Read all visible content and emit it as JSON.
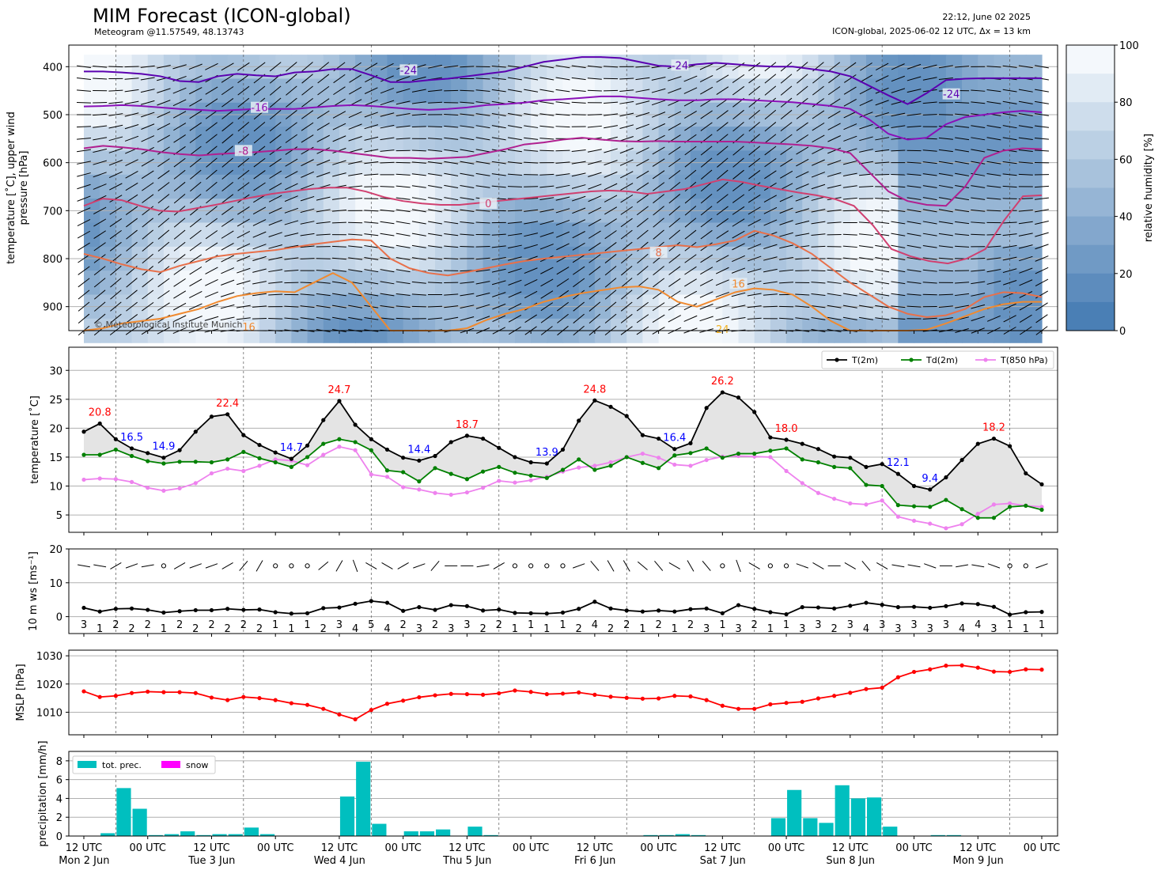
{
  "header": {
    "title": "MIM Forecast (ICON-global)",
    "subtitle": "Meteogram @11.57549, 48.13743",
    "issued": "22:12, June 02 2025",
    "model_info": "ICON-global, 2025-06-02 12 UTC, Δx = 13 km",
    "copyright": "© Meteorological Institute Munich"
  },
  "colors": {
    "t2m": "#000000",
    "td2m": "#008000",
    "t850": "#ee82ee",
    "max_label": "#ff0000",
    "min_label": "#0000ff",
    "mslp": "#ff0000",
    "precip": "#00bfbf",
    "snow": "#ff00ff",
    "rh_dark": "#4a7fb5",
    "rh_light": "#f4f8fc"
  },
  "time_axis": {
    "tick_labels": [
      "12 UTC",
      "00 UTC",
      "12 UTC",
      "00 UTC",
      "12 UTC",
      "00 UTC",
      "12 UTC",
      "00 UTC",
      "12 UTC",
      "00 UTC",
      "12 UTC",
      "00 UTC",
      "12 UTC",
      "00 UTC",
      "12 UTC",
      "00 UTC"
    ],
    "day_labels": [
      "Mon 2 Jun",
      "Tue 3 Jun",
      "Wed 4 Jun",
      "Thu 5 Jun",
      "Fri 6 Jun",
      "Sat 7 Jun",
      "Sun 8 Jun",
      "Mon 9 Jun"
    ],
    "hours_range": [
      0,
      180
    ],
    "step_hours": 3
  },
  "chart_data": [
    {
      "type": "heatmap",
      "name": "upper-air",
      "ylabel": "temperature [˚C], upper wind\npressure [hPa]",
      "yticks": [
        400,
        500,
        600,
        700,
        800,
        900
      ],
      "ylim": [
        950,
        355
      ],
      "colorbar": {
        "label": "relative humidity [%]",
        "ticks": [
          0,
          20,
          40,
          60,
          80,
          100
        ]
      },
      "isotherms": [
        {
          "label": "-24",
          "color": "#5b00b0",
          "level_hpa": [
            410,
            410,
            412,
            415,
            420,
            430,
            432,
            420,
            415,
            418,
            420,
            412,
            410,
            405,
            405,
            418,
            432,
            432,
            428,
            425,
            420,
            415,
            410,
            400,
            390,
            385,
            380,
            380,
            382,
            390,
            398,
            400,
            395,
            392,
            395,
            398,
            400,
            400,
            405,
            410,
            420,
            440,
            460,
            478,
            455,
            428,
            425,
            424,
            424,
            424,
            424
          ],
          "label_at": [
            [
              61,
              410
            ],
            [
              112,
              400
            ],
            [
              163,
              460
            ]
          ]
        },
        {
          "label": "-16",
          "color": "#8a10b8",
          "level_hpa": [
            483,
            482,
            480,
            482,
            485,
            488,
            490,
            492,
            490,
            488,
            488,
            488,
            485,
            482,
            480,
            482,
            485,
            488,
            490,
            488,
            485,
            480,
            478,
            475,
            470,
            468,
            465,
            462,
            462,
            465,
            468,
            470,
            470,
            468,
            468,
            470,
            472,
            474,
            478,
            482,
            488,
            510,
            540,
            552,
            548,
            520,
            505,
            500,
            495,
            492,
            495
          ],
          "label_at": [
            [
              33,
              488
            ]
          ]
        },
        {
          "label": "-8",
          "color": "#b02090",
          "level_hpa": [
            570,
            565,
            568,
            572,
            578,
            582,
            585,
            582,
            580,
            578,
            575,
            572,
            572,
            575,
            580,
            585,
            590,
            590,
            592,
            590,
            588,
            580,
            572,
            562,
            558,
            552,
            548,
            552,
            555,
            556,
            555,
            556,
            556,
            556,
            556,
            558,
            560,
            562,
            565,
            570,
            580,
            620,
            660,
            680,
            688,
            690,
            650,
            590,
            575,
            570,
            572
          ],
          "label_at": [
            [
              30,
              578
            ]
          ]
        },
        {
          "label": "0",
          "color": "#d04070",
          "level_hpa": [
            690,
            675,
            678,
            690,
            700,
            702,
            695,
            688,
            680,
            672,
            665,
            660,
            655,
            652,
            652,
            660,
            672,
            680,
            685,
            688,
            688,
            684,
            680,
            676,
            672,
            668,
            664,
            660,
            658,
            660,
            665,
            660,
            655,
            645,
            635,
            640,
            648,
            655,
            662,
            668,
            676,
            690,
            730,
            780,
            795,
            805,
            810,
            800,
            780,
            720,
            670,
            668
          ],
          "label_at": [
            [
              76,
              688
            ]
          ]
        },
        {
          "label": "8",
          "color": "#e8704a",
          "level_hpa": [
            790,
            800,
            812,
            822,
            828,
            815,
            805,
            795,
            790,
            786,
            782,
            776,
            770,
            765,
            760,
            762,
            800,
            820,
            830,
            835,
            828,
            820,
            812,
            805,
            800,
            796,
            792,
            788,
            784,
            780,
            776,
            772,
            776,
            770,
            762,
            742,
            752,
            768,
            790,
            820,
            850,
            875,
            900,
            915,
            922,
            918,
            905,
            880,
            870,
            872,
            880
          ],
          "label_at": [
            [
              108,
              790
            ]
          ]
        },
        {
          "label": "16",
          "color": "#f08a30",
          "level_hpa": [
            955,
            945,
            935,
            930,
            925,
            915,
            905,
            890,
            878,
            872,
            868,
            870,
            850,
            830,
            850,
            900,
            950,
            960,
            965,
            960,
            945,
            928,
            915,
            905,
            890,
            880,
            872,
            866,
            860,
            858,
            865,
            890,
            900,
            885,
            870,
            862,
            865,
            875,
            900,
            930,
            955,
            960,
            960,
            958,
            948,
            935,
            920,
            905,
            895,
            890,
            890
          ],
          "label_at": [
            [
              31,
              945
            ],
            [
              123,
              855
            ]
          ]
        },
        {
          "label": "24",
          "color": "#f0b020",
          "level_hpa": [],
          "label_at": [
            [
              120,
              955
            ]
          ]
        }
      ]
    },
    {
      "type": "line",
      "name": "temperature",
      "ylabel": "temperature [˚C]",
      "ylim": [
        2,
        34
      ],
      "yticks": [
        5,
        10,
        15,
        20,
        25,
        30
      ],
      "legend": [
        "T(2m)",
        "Td(2m)",
        "T(850 hPa)"
      ],
      "legend_loc": "top-right",
      "series": [
        {
          "name": "T(2m)",
          "values": [
            19.4,
            20.8,
            18.1,
            16.5,
            15.7,
            14.9,
            16.2,
            19.4,
            22.0,
            22.4,
            18.8,
            17.1,
            15.8,
            14.7,
            17.0,
            21.4,
            24.7,
            20.6,
            18.1,
            16.3,
            14.9,
            14.4,
            15.2,
            17.6,
            18.7,
            18.2,
            16.6,
            15.0,
            14.1,
            13.9,
            16.3,
            21.3,
            24.8,
            23.7,
            22.1,
            18.8,
            18.2,
            16.4,
            17.4,
            23.5,
            26.2,
            25.3,
            22.8,
            18.4,
            18.0,
            17.3,
            16.4,
            15.1,
            14.9,
            13.3,
            13.8,
            12.1,
            10.0,
            9.4,
            11.5,
            14.5,
            17.3,
            18.2,
            16.9,
            12.2,
            10.3
          ]
        },
        {
          "name": "Td(2m)",
          "values": [
            15.4,
            15.4,
            16.3,
            15.2,
            14.3,
            13.9,
            14.2,
            14.2,
            14.1,
            14.6,
            15.9,
            14.8,
            14.1,
            13.3,
            15.0,
            17.3,
            18.1,
            17.6,
            16.2,
            12.7,
            12.4,
            10.8,
            13.1,
            12.1,
            11.2,
            12.5,
            13.3,
            12.3,
            11.8,
            11.4,
            12.8,
            14.6,
            12.8,
            13.5,
            15.0,
            14.0,
            13.1,
            15.3,
            15.7,
            16.5,
            14.9,
            15.6,
            15.6,
            16.1,
            16.5,
            14.6,
            14.1,
            13.3,
            13.1,
            10.2,
            10.0,
            6.7,
            6.5,
            6.4,
            7.6,
            6.0,
            4.5,
            4.5,
            6.4,
            6.6,
            5.9
          ]
        },
        {
          "name": "T(850 hPa)",
          "values": [
            11.1,
            11.3,
            11.2,
            10.7,
            9.7,
            9.2,
            9.6,
            10.5,
            12.2,
            13.0,
            12.6,
            13.5,
            14.6,
            14.4,
            13.6,
            15.4,
            16.8,
            16.2,
            12.0,
            11.6,
            9.8,
            9.4,
            8.8,
            8.5,
            8.9,
            9.7,
            10.9,
            10.6,
            11.0,
            11.6,
            12.5,
            13.2,
            13.5,
            14.1,
            15.0,
            15.6,
            14.9,
            13.7,
            13.5,
            14.5,
            15.1,
            15.2,
            15.1,
            15.0,
            12.6,
            10.5,
            8.8,
            7.8,
            7.0,
            6.8,
            7.5,
            4.7,
            4.0,
            3.5,
            2.7,
            3.4,
            5.2,
            6.8,
            7.0,
            6.6,
            6.4
          ]
        }
      ],
      "extrema_labels": [
        {
          "text": "20.8",
          "hour": 3,
          "value": 20.8,
          "kind": "max"
        },
        {
          "text": "16.5",
          "hour": 9,
          "value": 16.5,
          "kind": "min"
        },
        {
          "text": "14.9",
          "hour": 15,
          "value": 14.9,
          "kind": "min"
        },
        {
          "text": "22.4",
          "hour": 27,
          "value": 22.4,
          "kind": "max"
        },
        {
          "text": "14.7",
          "hour": 39,
          "value": 14.7,
          "kind": "min"
        },
        {
          "text": "24.7",
          "hour": 48,
          "value": 24.7,
          "kind": "max"
        },
        {
          "text": "14.4",
          "hour": 63,
          "value": 14.4,
          "kind": "min"
        },
        {
          "text": "18.7",
          "hour": 72,
          "value": 18.7,
          "kind": "max"
        },
        {
          "text": "13.9",
          "hour": 87,
          "value": 13.9,
          "kind": "min"
        },
        {
          "text": "24.8",
          "hour": 96,
          "value": 24.8,
          "kind": "max"
        },
        {
          "text": "16.4",
          "hour": 111,
          "value": 16.4,
          "kind": "min"
        },
        {
          "text": "26.2",
          "hour": 120,
          "value": 26.2,
          "kind": "max"
        },
        {
          "text": "18.0",
          "hour": 132,
          "value": 18.0,
          "kind": "max"
        },
        {
          "text": "12.1",
          "hour": 153,
          "value": 12.1,
          "kind": "min"
        },
        {
          "text": "9.4",
          "hour": 159,
          "value": 9.4,
          "kind": "min"
        },
        {
          "text": "18.2",
          "hour": 171,
          "value": 18.2,
          "kind": "max"
        }
      ]
    },
    {
      "type": "line",
      "name": "wind",
      "ylabel": "10 m ws [ms⁻¹]",
      "ylim": [
        -5,
        20
      ],
      "yticks": [
        0,
        10,
        20
      ],
      "values": [
        2.6,
        1.5,
        2.3,
        2.4,
        2.0,
        1.2,
        1.6,
        1.9,
        1.9,
        2.3,
        2.0,
        2.1,
        1.3,
        0.9,
        1.0,
        2.5,
        2.7,
        3.8,
        4.6,
        4.1,
        1.7,
        2.8,
        2.0,
        3.4,
        3.1,
        1.8,
        2.1,
        1.1,
        1.0,
        0.9,
        1.2,
        2.3,
        4.4,
        2.4,
        1.8,
        1.5,
        1.8,
        1.5,
        2.2,
        2.4,
        1.0,
        3.4,
        2.3,
        1.3,
        0.7,
        2.8,
        2.7,
        2.4,
        3.2,
        4.1,
        3.5,
        2.8,
        2.9,
        2.6,
        3.1,
        3.9,
        3.7,
        2.9,
        0.6,
        1.3,
        1.4
      ],
      "bft_labels": [
        "3",
        "1",
        "2",
        "2",
        "2",
        "1",
        "2",
        "2",
        "2",
        "2",
        "2",
        "2",
        "1",
        "1",
        "1",
        "2",
        "3",
        "4",
        "5",
        "4",
        "2",
        "3",
        "2",
        "3",
        "3",
        "2",
        "2",
        "1",
        "1",
        "1",
        "1",
        "2",
        "4",
        "2",
        "2",
        "1",
        "2",
        "1",
        "2",
        "3",
        "1",
        "3",
        "2",
        "1",
        "1",
        "3",
        "3",
        "2",
        "3",
        "4",
        "3",
        "3",
        "3",
        "3",
        "3",
        "4",
        "4",
        "3",
        "1",
        "1",
        "1"
      ],
      "dir_deg": [
        280,
        280,
        240,
        250,
        260,
        -1,
        240,
        250,
        250,
        240,
        220,
        210,
        -1,
        -1,
        -1,
        230,
        210,
        340,
        300,
        300,
        240,
        250,
        220,
        270,
        270,
        260,
        240,
        -1,
        -1,
        -1,
        -1,
        250,
        320,
        330,
        330,
        310,
        320,
        300,
        330,
        320,
        -1,
        340,
        300,
        -1,
        -1,
        290,
        300,
        270,
        300,
        320,
        300,
        280,
        280,
        290,
        270,
        260,
        280,
        290,
        -1,
        -1,
        250
      ]
    },
    {
      "type": "line",
      "name": "mslp",
      "ylabel": "MSLP [hPa]",
      "ylim": [
        1002,
        1032
      ],
      "yticks": [
        1010,
        1020,
        1030
      ],
      "values": [
        1017.4,
        1015.4,
        1015.8,
        1016.8,
        1017.3,
        1017.1,
        1017.1,
        1016.8,
        1015.2,
        1014.3,
        1015.4,
        1015.0,
        1014.3,
        1013.2,
        1012.6,
        1011.2,
        1009.2,
        1007.5,
        1010.8,
        1013.0,
        1014.1,
        1015.3,
        1016.0,
        1016.5,
        1016.4,
        1016.2,
        1016.7,
        1017.7,
        1017.2,
        1016.4,
        1016.6,
        1017.0,
        1016.2,
        1015.5,
        1015.1,
        1014.8,
        1014.9,
        1015.8,
        1015.6,
        1014.3,
        1012.3,
        1011.2,
        1011.2,
        1012.8,
        1013.3,
        1013.7,
        1014.9,
        1015.8,
        1016.9,
        1018.2,
        1018.7,
        1022.4,
        1024.3,
        1025.2,
        1026.5,
        1026.6,
        1025.8,
        1024.4,
        1024.3,
        1025.2,
        1025.1
      ]
    },
    {
      "type": "bar",
      "name": "precipitation",
      "ylabel": "precipitation [mm/h]",
      "ylim": [
        0,
        9
      ],
      "yticks": [
        0,
        2,
        4,
        6,
        8
      ],
      "legend": [
        "tot. prec.",
        "snow"
      ],
      "legend_loc": "top-left",
      "series": [
        {
          "name": "tot. prec.",
          "values": [
            0,
            0.3,
            5.1,
            2.9,
            0.1,
            0.2,
            0.5,
            0.1,
            0.2,
            0.2,
            0.9,
            0.2,
            0,
            0,
            0,
            0,
            4.2,
            7.9,
            1.3,
            0,
            0.5,
            0.5,
            0.7,
            0,
            1.0,
            0.1,
            0,
            0,
            0,
            0,
            0,
            0,
            0,
            0,
            0,
            0.1,
            0.1,
            0.2,
            0.1,
            0,
            0,
            0,
            0,
            1.9,
            4.9,
            1.9,
            1.4,
            5.4,
            4.0,
            4.1,
            1.0,
            0,
            0,
            0.1,
            0.1,
            0,
            0,
            0,
            0,
            0
          ]
        },
        {
          "name": "snow",
          "values": []
        }
      ]
    }
  ]
}
